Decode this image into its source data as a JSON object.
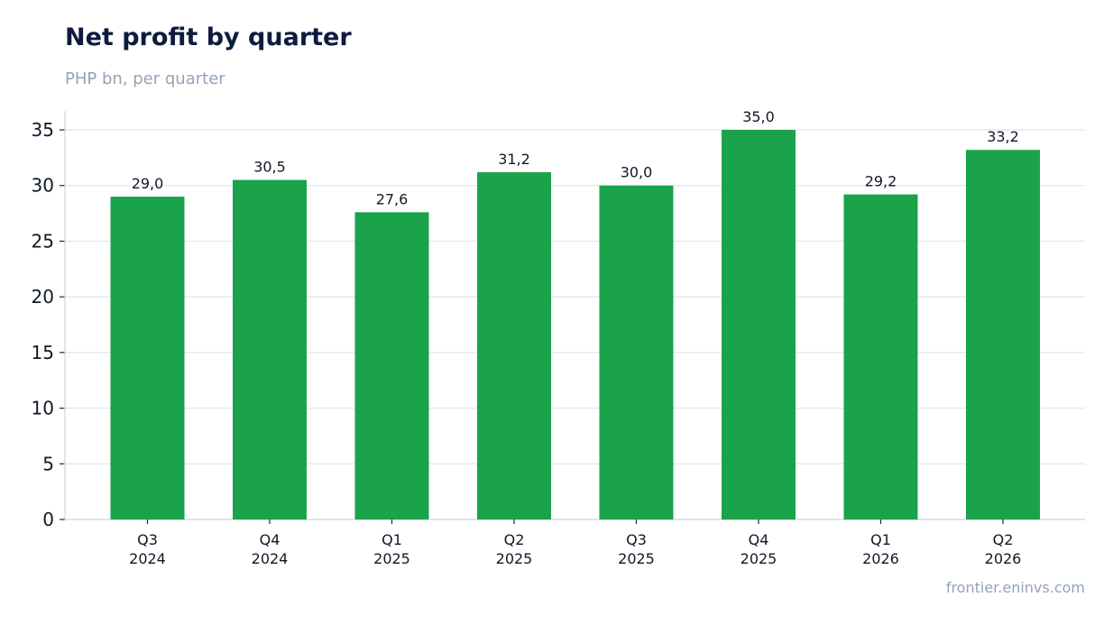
{
  "title": "Net profit by quarter",
  "subtitle": "PHP bn, per quarter",
  "source": "frontier.eninvs.com",
  "colors": {
    "bar": "#1aa34a",
    "title": "#0d1b3e",
    "muted": "#94a3b8",
    "grid": "#e2e8f0"
  },
  "chart_data": {
    "type": "bar",
    "categories": [
      [
        "Q3",
        "2024"
      ],
      [
        "Q4",
        "2024"
      ],
      [
        "Q1",
        "2025"
      ],
      [
        "Q2",
        "2025"
      ],
      [
        "Q3",
        "2025"
      ],
      [
        "Q4",
        "2025"
      ],
      [
        "Q1",
        "2026"
      ],
      [
        "Q2",
        "2026"
      ]
    ],
    "values": [
      29.0,
      30.5,
      27.6,
      31.2,
      30.0,
      35.0,
      29.2,
      33.2
    ],
    "value_labels": [
      "29,0",
      "30,5",
      "27,6",
      "31,2",
      "30,0",
      "35,0",
      "29,2",
      "33,2"
    ],
    "yticks": [
      0,
      5,
      10,
      15,
      20,
      25,
      30,
      35
    ],
    "ylim": [
      0,
      35
    ],
    "grid": true,
    "legend": "none"
  }
}
